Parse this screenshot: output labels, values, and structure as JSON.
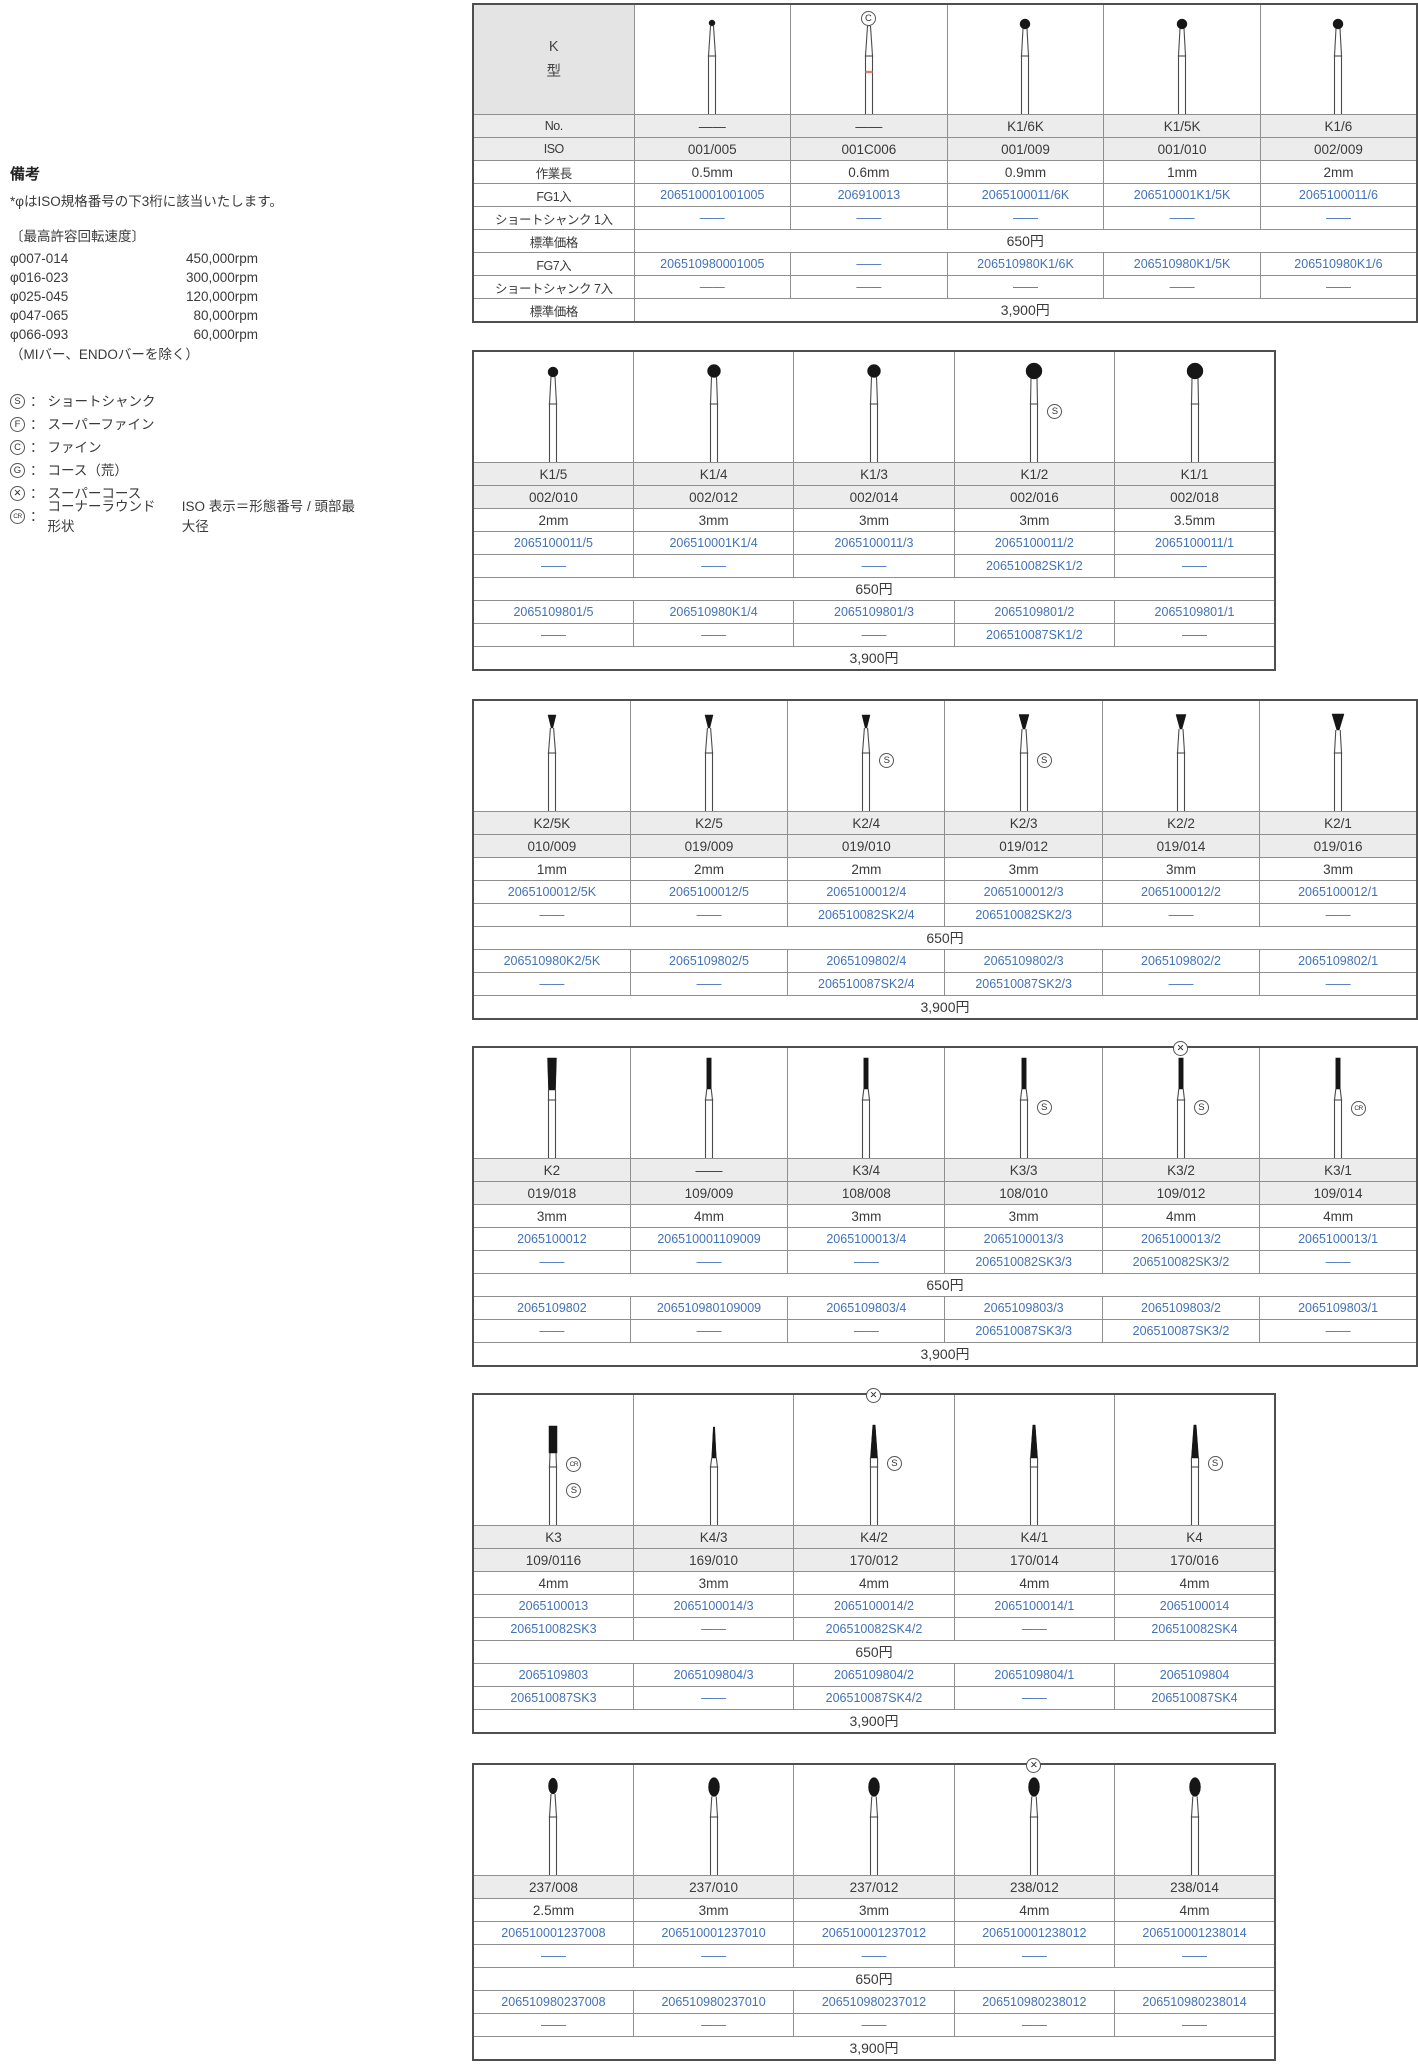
{
  "colors": {
    "link_blue": "#4272b8",
    "row_gray": "#ececec",
    "red_band": "#d9806f"
  },
  "notes": {
    "title": "備考",
    "line1": "*φはISO規格番号の下3桁に該当いたします。",
    "speed_title": "〔最高許容回転速度〕",
    "speeds": [
      {
        "range": "φ007-014",
        "rpm": "450,000rpm"
      },
      {
        "range": "φ016-023",
        "rpm": "300,000rpm"
      },
      {
        "range": "φ025-045",
        "rpm": "120,000rpm"
      },
      {
        "range": "φ047-065",
        "rpm": "80,000rpm"
      },
      {
        "range": "φ066-093",
        "rpm": "60,000rpm"
      }
    ],
    "speed_note": "（MIバー、ENDOバーを除く）",
    "legend": [
      {
        "badge": "S",
        "label": "ショートシャンク"
      },
      {
        "badge": "F",
        "label": "スーパーファイン"
      },
      {
        "badge": "C",
        "label": "ファイン"
      },
      {
        "badge": "G",
        "label": "コース（荒）"
      },
      {
        "badge": "X",
        "label": "スーパーコース"
      },
      {
        "badge": "CR",
        "label": "コーナーラウンド形状"
      }
    ],
    "legend_extra": "ISO 表示＝形態番号 / 頭部最大径"
  },
  "labels": {
    "type_lines": [
      "K",
      "型"
    ],
    "no": "No.",
    "iso": "ISO",
    "length": "作業長",
    "fg1": "FG1入",
    "ss1": "ショートシャンク 1入",
    "price": "標準価格",
    "fg7": "FG7入",
    "ss7": "ショートシャンク 7入",
    "price_single": "650円",
    "price_seven": "3,900円",
    "dash": "――"
  },
  "tables": [
    {
      "label_col": true,
      "name_row": true,
      "columns": [
        {
          "no": "――",
          "iso": "001/005",
          "len": "0.5mm",
          "fg1": "206510001001005",
          "ss1": "――",
          "fg7": "206510980001005",
          "ss7": "――",
          "bur": "ball-tiny",
          "side_badges": [],
          "top_badge": null,
          "red_band": false
        },
        {
          "no": "――",
          "iso": "001C006",
          "len": "0.6mm",
          "fg1": "206910013",
          "ss1": "――",
          "fg7": "――",
          "ss7": "――",
          "bur": "ball-tiny",
          "side_badges": [],
          "top_badge": "C",
          "red_band": true
        },
        {
          "no": "K1/6K",
          "iso": "001/009",
          "len": "0.9mm",
          "fg1": "2065100011/6K",
          "ss1": "――",
          "fg7": "206510980K1/6K",
          "ss7": "――",
          "bur": "ball-small",
          "side_badges": [],
          "top_badge": null,
          "red_band": false
        },
        {
          "no": "K1/5K",
          "iso": "001/010",
          "len": "1mm",
          "fg1": "206510001K1/5K",
          "ss1": "――",
          "fg7": "206510980K1/5K",
          "ss7": "――",
          "bur": "ball-small",
          "side_badges": [],
          "top_badge": null,
          "red_band": false
        },
        {
          "no": "K1/6",
          "iso": "002/009",
          "len": "2mm",
          "fg1": "2065100011/6",
          "ss1": "――",
          "fg7": "206510980K1/6",
          "ss7": "――",
          "bur": "ball-small",
          "side_badges": [],
          "top_badge": null,
          "red_band": false
        }
      ]
    },
    {
      "label_col": false,
      "name_row": true,
      "columns": [
        {
          "no": "K1/5",
          "iso": "002/010",
          "len": "2mm",
          "fg1": "2065100011/5",
          "ss1": "――",
          "fg7": "2065109801/5",
          "ss7": "――",
          "bur": "ball-small",
          "side_badges": [],
          "top_badge": null,
          "red_band": false
        },
        {
          "no": "K1/4",
          "iso": "002/012",
          "len": "3mm",
          "fg1": "206510001K1/4",
          "ss1": "――",
          "fg7": "206510980K1/4",
          "ss7": "――",
          "bur": "ball-med",
          "side_badges": [],
          "top_badge": null,
          "red_band": false
        },
        {
          "no": "K1/3",
          "iso": "002/014",
          "len": "3mm",
          "fg1": "2065100011/3",
          "ss1": "――",
          "fg7": "2065109801/3",
          "ss7": "――",
          "bur": "ball-med",
          "side_badges": [],
          "top_badge": null,
          "red_band": false
        },
        {
          "no": "K1/2",
          "iso": "002/016",
          "len": "3mm",
          "fg1": "2065100011/2",
          "ss1": "206510082SK1/2",
          "fg7": "2065109801/2",
          "ss7": "206510087SK1/2",
          "bur": "ball-large",
          "side_badges": [
            "S"
          ],
          "top_badge": null,
          "red_band": false
        },
        {
          "no": "K1/1",
          "iso": "002/018",
          "len": "3.5mm",
          "fg1": "2065100011/1",
          "ss1": "――",
          "fg7": "2065109801/1",
          "ss7": "――",
          "bur": "ball-large",
          "side_badges": [],
          "top_badge": null,
          "red_band": false
        }
      ]
    },
    {
      "label_col": false,
      "name_row": true,
      "columns": [
        {
          "no": "K2/5K",
          "iso": "010/009",
          "len": "1mm",
          "fg1": "2065100012/5K",
          "ss1": "――",
          "fg7": "206510980K2/5K",
          "ss7": "――",
          "bur": "invcone-s",
          "side_badges": [],
          "top_badge": null,
          "red_band": false
        },
        {
          "no": "K2/5",
          "iso": "019/009",
          "len": "2mm",
          "fg1": "2065100012/5",
          "ss1": "――",
          "fg7": "2065109802/5",
          "ss7": "――",
          "bur": "invcone-s",
          "side_badges": [],
          "top_badge": null,
          "red_band": false
        },
        {
          "no": "K2/4",
          "iso": "019/010",
          "len": "2mm",
          "fg1": "2065100012/4",
          "ss1": "206510082SK2/4",
          "fg7": "2065109802/4",
          "ss7": "206510087SK2/4",
          "bur": "invcone-s",
          "side_badges": [
            "S"
          ],
          "top_badge": null,
          "red_band": false
        },
        {
          "no": "K2/3",
          "iso": "019/012",
          "len": "3mm",
          "fg1": "2065100012/3",
          "ss1": "206510082SK2/3",
          "fg7": "2065109802/3",
          "ss7": "206510087SK2/3",
          "bur": "invcone-m",
          "side_badges": [
            "S"
          ],
          "top_badge": null,
          "red_band": false
        },
        {
          "no": "K2/2",
          "iso": "019/014",
          "len": "3mm",
          "fg1": "2065100012/2",
          "ss1": "――",
          "fg7": "2065109802/2",
          "ss7": "――",
          "bur": "invcone-m",
          "side_badges": [],
          "top_badge": null,
          "red_band": false
        },
        {
          "no": "K2/1",
          "iso": "019/016",
          "len": "3mm",
          "fg1": "2065100012/1",
          "ss1": "――",
          "fg7": "2065109802/1",
          "ss7": "――",
          "bur": "invcone-l",
          "side_badges": [],
          "top_badge": null,
          "red_band": false
        }
      ]
    },
    {
      "label_col": false,
      "name_row": true,
      "columns": [
        {
          "no": "K2",
          "iso": "019/018",
          "len": "3mm",
          "fg1": "2065100012",
          "ss1": "――",
          "fg7": "2065109802",
          "ss7": "――",
          "bur": "cyl-wide",
          "side_badges": [],
          "top_badge": null,
          "red_band": false
        },
        {
          "no": "――",
          "iso": "109/009",
          "len": "4mm",
          "fg1": "206510001109009",
          "ss1": "――",
          "fg7": "206510980109009",
          "ss7": "――",
          "bur": "cyl-thin",
          "side_badges": [],
          "top_badge": null,
          "red_band": false
        },
        {
          "no": "K3/4",
          "iso": "108/008",
          "len": "3mm",
          "fg1": "2065100013/4",
          "ss1": "――",
          "fg7": "2065109803/4",
          "ss7": "――",
          "bur": "cyl-thin",
          "side_badges": [],
          "top_badge": null,
          "red_band": false
        },
        {
          "no": "K3/3",
          "iso": "108/010",
          "len": "3mm",
          "fg1": "2065100013/3",
          "ss1": "206510082SK3/3",
          "fg7": "2065109803/3",
          "ss7": "206510087SK3/3",
          "bur": "cyl-thin",
          "side_badges": [
            "S"
          ],
          "top_badge": null,
          "red_band": false
        },
        {
          "no": "K3/2",
          "iso": "109/012",
          "len": "4mm",
          "fg1": "2065100013/2",
          "ss1": "206510082SK3/2",
          "fg7": "2065109803/2",
          "ss7": "206510087SK3/2",
          "bur": "cyl-thin",
          "side_badges": [
            "S"
          ],
          "top_badge": "X",
          "red_band": false
        },
        {
          "no": "K3/1",
          "iso": "109/014",
          "len": "4mm",
          "fg1": "2065100013/1",
          "ss1": "――",
          "fg7": "2065109803/1",
          "ss7": "――",
          "bur": "cyl-thin",
          "side_badges": [
            "CR"
          ],
          "top_badge": null,
          "red_band": false
        }
      ]
    },
    {
      "label_col": false,
      "name_row": true,
      "columns": [
        {
          "no": "K3",
          "iso": "109/0116",
          "len": "4mm",
          "fg1": "2065100013",
          "ss1": "206510082SK3",
          "fg7": "2065109803",
          "ss7": "206510087SK3",
          "bur": "cyl-med",
          "side_badges": [
            "CR",
            "S"
          ],
          "top_badge": null,
          "red_band": false
        },
        {
          "no": "K4/3",
          "iso": "169/010",
          "len": "3mm",
          "fg1": "2065100014/3",
          "ss1": "――",
          "fg7": "2065109804/3",
          "ss7": "――",
          "bur": "taper-thin",
          "side_badges": [],
          "top_badge": null,
          "red_band": false
        },
        {
          "no": "K4/2",
          "iso": "170/012",
          "len": "4mm",
          "fg1": "2065100014/2",
          "ss1": "206510082SK4/2",
          "fg7": "2065109804/2",
          "ss7": "206510087SK4/2",
          "bur": "taper",
          "side_badges": [
            "S"
          ],
          "top_badge": "X",
          "red_band": false
        },
        {
          "no": "K4/1",
          "iso": "170/014",
          "len": "4mm",
          "fg1": "2065100014/1",
          "ss1": "――",
          "fg7": "2065109804/1",
          "ss7": "――",
          "bur": "taper",
          "side_badges": [],
          "top_badge": null,
          "red_band": false
        },
        {
          "no": "K4",
          "iso": "170/016",
          "len": "4mm",
          "fg1": "2065100014",
          "ss1": "206510082SK4",
          "fg7": "2065109804",
          "ss7": "206510087SK4",
          "bur": "taper",
          "side_badges": [
            "S"
          ],
          "top_badge": null,
          "red_band": false
        }
      ]
    },
    {
      "label_col": false,
      "name_row": false,
      "columns": [
        {
          "iso": "237/008",
          "len": "2.5mm",
          "fg1": "206510001237008",
          "ss1": "――",
          "fg7": "206510980237008",
          "ss7": "――",
          "bur": "egg-s",
          "side_badges": [],
          "top_badge": null,
          "red_band": false
        },
        {
          "iso": "237/010",
          "len": "3mm",
          "fg1": "206510001237010",
          "ss1": "――",
          "fg7": "206510980237010",
          "ss7": "――",
          "bur": "egg",
          "side_badges": [],
          "top_badge": null,
          "red_band": false
        },
        {
          "iso": "237/012",
          "len": "3mm",
          "fg1": "206510001237012",
          "ss1": "――",
          "fg7": "206510980237012",
          "ss7": "――",
          "bur": "egg",
          "side_badges": [],
          "top_badge": null,
          "red_band": false
        },
        {
          "iso": "238/012",
          "len": "4mm",
          "fg1": "206510001238012",
          "ss1": "――",
          "fg7": "206510980238012",
          "ss7": "――",
          "bur": "egg",
          "side_badges": [],
          "top_badge": "X",
          "red_band": false
        },
        {
          "iso": "238/014",
          "len": "4mm",
          "fg1": "206510001238014",
          "ss1": "――",
          "fg7": "206510980238014",
          "ss7": "――",
          "bur": "egg",
          "side_badges": [],
          "top_badge": null,
          "red_band": false
        }
      ]
    }
  ]
}
